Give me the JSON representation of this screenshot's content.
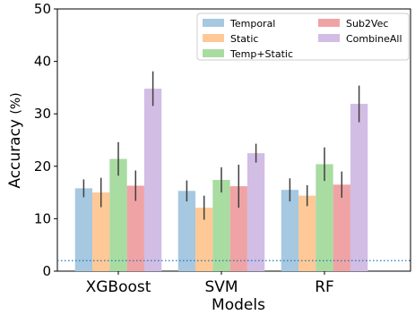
{
  "chart_data": {
    "type": "bar",
    "title": "",
    "xlabel": "Models",
    "ylabel": "Accuracy",
    "ylabel_unit": "(%)",
    "ylim": [
      0,
      50
    ],
    "yticks": [
      0,
      10,
      20,
      30,
      40,
      50
    ],
    "categories": [
      "XGBoost",
      "SVM",
      "RF"
    ],
    "series": [
      {
        "name": "Temporal",
        "color": "#a6c8e0",
        "values": [
          15.8,
          15.3,
          15.5
        ],
        "errors": [
          1.7,
          2.0,
          2.2
        ]
      },
      {
        "name": "Static",
        "color": "#ffc897",
        "values": [
          15.0,
          12.1,
          14.4
        ],
        "errors": [
          2.8,
          2.3,
          2.0
        ]
      },
      {
        "name": "Temp+Static",
        "color": "#a8dca1",
        "values": [
          21.4,
          17.4,
          20.4
        ],
        "errors": [
          3.2,
          2.4,
          3.2
        ]
      },
      {
        "name": "Sub2Vec",
        "color": "#f0a3a4",
        "values": [
          16.3,
          16.2,
          16.5
        ],
        "errors": [
          2.9,
          4.1,
          2.5
        ]
      },
      {
        "name": "CombineAll",
        "color": "#d2bde4",
        "values": [
          34.8,
          22.5,
          31.9
        ],
        "errors": [
          3.3,
          1.8,
          3.5
        ]
      }
    ],
    "baseline": {
      "value": 2.0,
      "style": "dotted",
      "color": "#1f77b4"
    },
    "legend": {
      "placement": "top-right",
      "columns": 2
    },
    "grid": false
  }
}
